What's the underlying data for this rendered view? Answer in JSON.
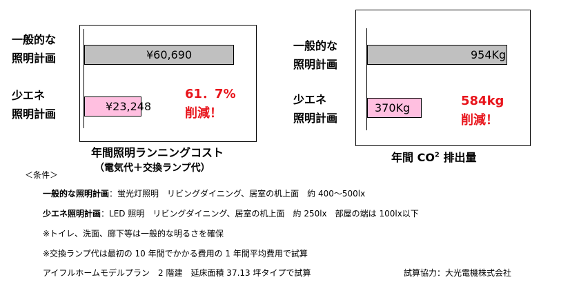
{
  "chart_data": [
    {
      "type": "bar",
      "orientation": "horizontal",
      "title": "年間照明ランニングコスト",
      "subtitle": "（電気代＋交換ランプ代）",
      "categories": [
        "一般的な照明計画",
        "少エネ照明計画"
      ],
      "category_lines": [
        [
          "一般的な",
          "照明計画"
        ],
        [
          "少エネ",
          "照明計画"
        ]
      ],
      "values": [
        60690,
        23248
      ],
      "value_labels": [
        "¥60,690",
        "¥23,248"
      ],
      "bar_colors": [
        "#c0c0c0",
        "#ffbfe0"
      ],
      "annotation": [
        "61．7%",
        "削減！"
      ],
      "xlim": [
        0,
        67000
      ],
      "grid": false,
      "legend": "none"
    },
    {
      "type": "bar",
      "orientation": "horizontal",
      "title_prefix": "年間 CO",
      "title_sup": "2",
      "title_suffix": " 排出量",
      "categories": [
        "一般的な照明計画",
        "少エネ照明計画"
      ],
      "category_lines": [
        [
          "一般的な",
          "照明計画"
        ],
        [
          "少エネ",
          "照明計画"
        ]
      ],
      "values": [
        954,
        370
      ],
      "value_labels": [
        "954Kg",
        "370Kg"
      ],
      "bar_colors": [
        "#c0c0c0",
        "#ffbfe0"
      ],
      "annotation": [
        "584kg",
        "削減！"
      ],
      "xlim": [
        0,
        1060
      ],
      "grid": false,
      "legend": "none"
    }
  ],
  "conditions": {
    "heading": "＜条件＞",
    "line1_bold": "一般的な照明計画",
    "line1_rest": "：蛍光灯照明　リビングダイニング、居室の机上面　約 400～500lx",
    "line2_bold": "少エネ照明計画",
    "line2_rest": "：LED 照明　リビングダイニング、居室の机上面　約 250lx　部屋の端は 100lx以下",
    "line3": "※トイレ、洗面、廊下等は一般的な明るさを確保",
    "line4": "※交換ランプ代は最初の 10 年間でかかる費用の 1 年間平均費用で試算",
    "line5": "アイフルホームモデルプラン　2 階建　延床面積 37.13 坪タイプで試算",
    "credit": "試算協力：大光電機株式会社"
  },
  "colors": {
    "gray_bar": "#c0c0c0",
    "pink_bar": "#ffbfe0",
    "accent_red": "#e8141b"
  }
}
